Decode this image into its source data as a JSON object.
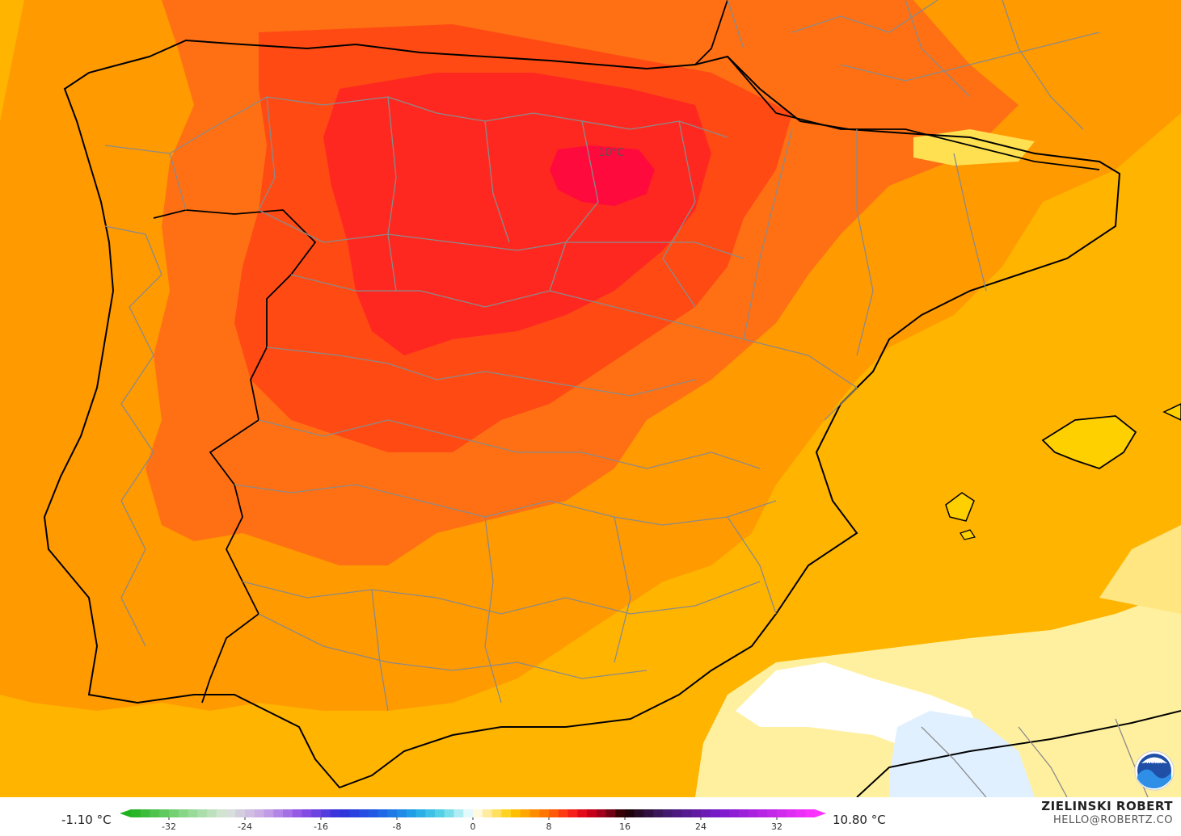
{
  "map": {
    "center_label": "10°C",
    "logo_text": "NOAA"
  },
  "colorbar": {
    "min_label": "-1.10 °C",
    "max_label": "10.80 °C",
    "ticks": [
      "-32",
      "-24",
      "-16",
      "-8",
      "0",
      "8",
      "16",
      "24",
      "32"
    ],
    "range": [
      -36,
      36
    ],
    "stops": [
      {
        "v": -36,
        "c": "#1fb31f"
      },
      {
        "v": -30,
        "c": "#8fd98f"
      },
      {
        "v": -26,
        "c": "#d9e6d9"
      },
      {
        "v": -22,
        "c": "#c9a6e6"
      },
      {
        "v": -18,
        "c": "#8f4fe6"
      },
      {
        "v": -14,
        "c": "#2f2fd9"
      },
      {
        "v": -10,
        "c": "#1f5fe6"
      },
      {
        "v": -6,
        "c": "#1fa6e6"
      },
      {
        "v": -3,
        "c": "#5fd9e6"
      },
      {
        "v": 0,
        "c": "#ffffff"
      },
      {
        "v": 2,
        "c": "#ffe680"
      },
      {
        "v": 4,
        "c": "#ffcc00"
      },
      {
        "v": 6,
        "c": "#ff9900"
      },
      {
        "v": 8,
        "c": "#ff6a00"
      },
      {
        "v": 10,
        "c": "#ff2b1a"
      },
      {
        "v": 12,
        "c": "#d9001a"
      },
      {
        "v": 14,
        "c": "#8f001a"
      },
      {
        "v": 16,
        "c": "#1a0000"
      },
      {
        "v": 20,
        "c": "#3d1a66"
      },
      {
        "v": 26,
        "c": "#7a1acc"
      },
      {
        "v": 36,
        "c": "#ff33ff"
      }
    ]
  },
  "credit": {
    "name": "ZIELINSKI ROBERT",
    "email": "HELLO@ROBERTZ.CO"
  }
}
